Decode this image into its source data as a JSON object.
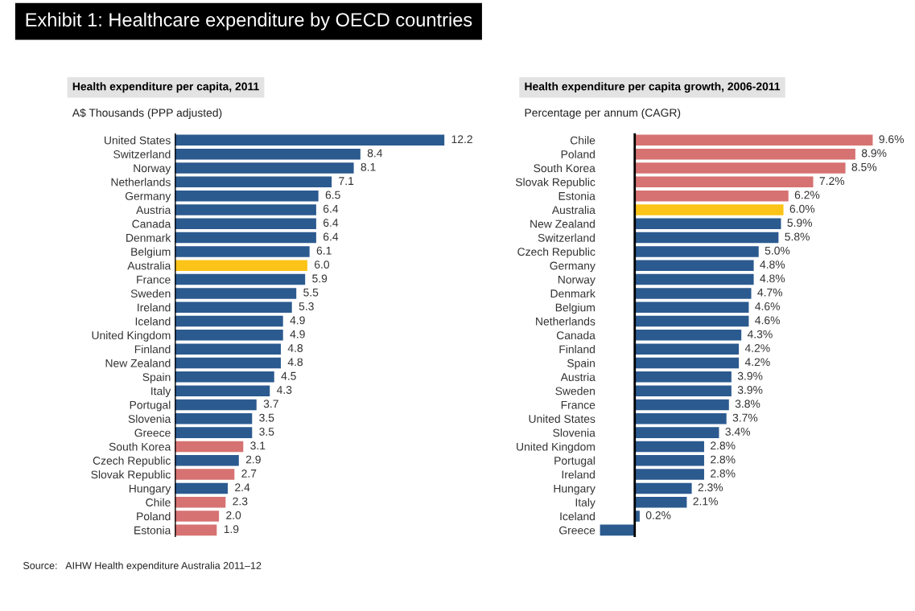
{
  "chart_data": [
    {
      "type": "bar",
      "orientation": "horizontal",
      "title": "Health expenditure per capita, 2011",
      "subtitle": "A$ Thousands (PPP adjusted)",
      "categories": [
        "United States",
        "Switzerland",
        "Norway",
        "Netherlands",
        "Germany",
        "Austria",
        "Canada",
        "Denmark",
        "Belgium",
        "Australia",
        "France",
        "Sweden",
        "Ireland",
        "Iceland",
        "United Kingdom",
        "Finland",
        "New Zealand",
        "Spain",
        "Italy",
        "Portugal",
        "Slovenia",
        "Greece",
        "South Korea",
        "Czech Republic",
        "Slovak Republic",
        "Hungary",
        "Chile",
        "Poland",
        "Estonia"
      ],
      "values": [
        12.2,
        8.4,
        8.1,
        7.1,
        6.5,
        6.4,
        6.4,
        6.4,
        6.1,
        6.0,
        5.9,
        5.5,
        5.3,
        4.9,
        4.9,
        4.8,
        4.8,
        4.5,
        4.3,
        3.7,
        3.5,
        3.5,
        3.1,
        2.9,
        2.7,
        2.4,
        2.3,
        2.0,
        1.9
      ],
      "colors": [
        "#2b5a8f",
        "#2b5a8f",
        "#2b5a8f",
        "#2b5a8f",
        "#2b5a8f",
        "#2b5a8f",
        "#2b5a8f",
        "#2b5a8f",
        "#2b5a8f",
        "#fcc418",
        "#2b5a8f",
        "#2b5a8f",
        "#2b5a8f",
        "#2b5a8f",
        "#2b5a8f",
        "#2b5a8f",
        "#2b5a8f",
        "#2b5a8f",
        "#2b5a8f",
        "#2b5a8f",
        "#2b5a8f",
        "#2b5a8f",
        "#d77272",
        "#2b5a8f",
        "#d77272",
        "#2b5a8f",
        "#d77272",
        "#d77272",
        "#d77272"
      ],
      "value_labels": [
        "12.2",
        "8.4",
        "8.1",
        "7.1",
        "6.5",
        "6.4",
        "6.4",
        "6.4",
        "6.1",
        "6.0",
        "5.9",
        "5.5",
        "5.3",
        "4.9",
        "4.9",
        "4.8",
        "4.8",
        "4.5",
        "4.3",
        "3.7",
        "3.5",
        "3.5",
        "3.1",
        "2.9",
        "2.7",
        "2.4",
        "2.3",
        "2.0",
        "1.9"
      ],
      "annotations": [
        "Exhibit 1: Healthcare expenditure by OECD countries",
        "Source:   AIHW Health expenditure Australia 2011–12"
      ]
    },
    {
      "type": "bar",
      "orientation": "horizontal",
      "title": "Health expenditure per capita growth, 2006-2011",
      "subtitle": "Percentage per annum (CAGR)",
      "categories": [
        "Chile",
        "Poland",
        "South Korea",
        "Slovak Republic",
        "Estonia",
        "Australia",
        "New Zealand",
        "Switzerland",
        "Czech Republic",
        "Germany",
        "Norway",
        "Denmark",
        "Belgium",
        "Netherlands",
        "Canada",
        "Finland",
        "Spain",
        "Austria",
        "Sweden",
        "France",
        "United States",
        "Slovenia",
        "United Kingdom",
        "Portugal",
        "Ireland",
        "Hungary",
        "Italy",
        "Iceland",
        "Greece"
      ],
      "values": [
        9.6,
        8.9,
        8.5,
        7.2,
        6.2,
        6.0,
        5.9,
        5.8,
        5.0,
        4.8,
        4.8,
        4.7,
        4.6,
        4.6,
        4.3,
        4.2,
        4.2,
        3.9,
        3.9,
        3.8,
        3.7,
        3.4,
        2.8,
        2.8,
        2.8,
        2.3,
        2.1,
        0.2,
        -1.4
      ],
      "colors": [
        "#d77272",
        "#d77272",
        "#d77272",
        "#d77272",
        "#d77272",
        "#fcc418",
        "#2b5a8f",
        "#2b5a8f",
        "#2b5a8f",
        "#2b5a8f",
        "#2b5a8f",
        "#2b5a8f",
        "#2b5a8f",
        "#2b5a8f",
        "#2b5a8f",
        "#2b5a8f",
        "#2b5a8f",
        "#2b5a8f",
        "#2b5a8f",
        "#2b5a8f",
        "#2b5a8f",
        "#2b5a8f",
        "#2b5a8f",
        "#2b5a8f",
        "#2b5a8f",
        "#2b5a8f",
        "#2b5a8f",
        "#2b5a8f",
        "#2b5a8f"
      ],
      "value_labels": [
        "9.6%",
        "8.9%",
        "8.5%",
        "7.2%",
        "6.2%",
        "6.0%",
        "5.9%",
        "5.8%",
        "5.0%",
        "4.8%",
        "4.8%",
        "4.7%",
        "4.6%",
        "4.6%",
        "4.3%",
        "4.2%",
        "4.2%",
        "3.9%",
        "3.9%",
        "3.8%",
        "3.7%",
        "3.4%",
        "2.8%",
        "2.8%",
        "2.8%",
        "2.3%",
        "2.1%",
        "0.2%",
        null
      ]
    }
  ]
}
